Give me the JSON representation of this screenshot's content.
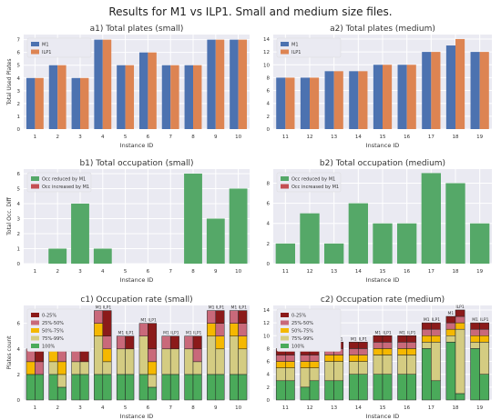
{
  "figure": {
    "title": "Results for M1 vs ILP1. Small and medium size files."
  },
  "colors": {
    "panel_bg": "#eaeaf2",
    "grid": "#ffffff",
    "m1": "#4c72b0",
    "ilp1": "#dd8452",
    "reduced": "#55a868",
    "increased": "#c44e52",
    "rate_0_25": "#8b1a1a",
    "rate_25_50": "#c9697a",
    "rate_50_75": "#f5b800",
    "rate_75_99": "#d4cc82",
    "rate_100": "#4aaa5a"
  },
  "chart_data": [
    {
      "id": "a1",
      "type": "bar",
      "title": "a1) Total plates (small)",
      "xlabel": "Instance ID",
      "ylabel": "Total Used Plates",
      "categories": [
        "1",
        "2",
        "3",
        "4",
        "5",
        "6",
        "7",
        "8",
        "9",
        "10"
      ],
      "series": [
        {
          "name": "M1",
          "values": [
            4,
            5,
            4,
            7,
            5,
            6,
            5,
            5,
            7,
            7
          ]
        },
        {
          "name": "ILP1",
          "values": [
            4,
            5,
            4,
            7,
            5,
            6,
            5,
            5,
            7,
            7
          ]
        }
      ],
      "ylim": [
        0,
        7.4
      ],
      "yticks": [
        0,
        1,
        2,
        3,
        4,
        5,
        6,
        7
      ],
      "legend": "top-left"
    },
    {
      "id": "a2",
      "type": "bar",
      "title": "a2) Total plates (medium)",
      "xlabel": "Instance ID",
      "ylabel": "",
      "categories": [
        "11",
        "12",
        "13",
        "14",
        "15",
        "16",
        "17",
        "18",
        "19"
      ],
      "series": [
        {
          "name": "M1",
          "values": [
            8,
            8,
            9,
            9,
            10,
            10,
            12,
            13,
            12
          ]
        },
        {
          "name": "ILP1",
          "values": [
            8,
            8,
            9,
            9,
            10,
            10,
            12,
            14,
            12
          ]
        }
      ],
      "ylim": [
        0,
        14.7
      ],
      "yticks": [
        0,
        2,
        4,
        6,
        8,
        10,
        12,
        14
      ],
      "legend": "top-left"
    },
    {
      "id": "b1",
      "type": "bar",
      "title": "b1) Total occupation (small)",
      "xlabel": "Instance ID",
      "ylabel": "Total Occ. Diff",
      "categories": [
        "1",
        "2",
        "3",
        "4",
        "5",
        "6",
        "7",
        "8",
        "9",
        "10"
      ],
      "series": [
        {
          "name": "Occ reduced by M1",
          "values": [
            0,
            1,
            4,
            1,
            0,
            0,
            0,
            6,
            3,
            5
          ]
        },
        {
          "name": "Occ increased by M1",
          "values": [
            0,
            0,
            0,
            0,
            0,
            0,
            0,
            0,
            0,
            0
          ]
        }
      ],
      "ylim": [
        0,
        6.3
      ],
      "yticks": [
        0,
        1,
        2,
        3,
        4,
        5,
        6
      ],
      "legend": "top-left"
    },
    {
      "id": "b2",
      "type": "bar",
      "title": "b2) Total occupation (medium)",
      "xlabel": "Instance ID",
      "ylabel": "",
      "categories": [
        "11",
        "12",
        "13",
        "14",
        "15",
        "16",
        "17",
        "18",
        "19"
      ],
      "series": [
        {
          "name": "Occ reduced by M1",
          "values": [
            2,
            5,
            2,
            6,
            4,
            4,
            9,
            8,
            4
          ]
        },
        {
          "name": "Occ increased by M1",
          "values": [
            0,
            0,
            0,
            0,
            0,
            0,
            0,
            0,
            0
          ]
        }
      ],
      "ylim": [
        0,
        9.4
      ],
      "yticks": [
        0,
        2,
        4,
        6,
        8
      ],
      "legend": "top-left"
    },
    {
      "id": "c1",
      "type": "bar",
      "title": "c1) Occupation rate (small)",
      "xlabel": "Instance ID",
      "ylabel": "Plates count",
      "categories": [
        "1",
        "2",
        "3",
        "4",
        "5",
        "6",
        "7",
        "8",
        "9",
        "10"
      ],
      "stack_labels": [
        "0-25%",
        "25%-50%",
        "50%-75%",
        "75%-99%",
        "100%"
      ],
      "bar_labels": [
        "M1",
        "ILP1"
      ],
      "groups": [
        {
          "M1": [
            0,
            1,
            1,
            0,
            2
          ],
          "ILP1": [
            1,
            1,
            0,
            0,
            2
          ]
        },
        {
          "M1": [
            0,
            1,
            1,
            1,
            2
          ],
          "ILP1": [
            1,
            1,
            1,
            1,
            1
          ]
        },
        {
          "M1": [
            0,
            1,
            0,
            1,
            2
          ],
          "ILP1": [
            1,
            0,
            0,
            1,
            2
          ]
        },
        {
          "M1": [
            0,
            1,
            1,
            3,
            2
          ],
          "ILP1": [
            2,
            1,
            1,
            1,
            2
          ]
        },
        {
          "M1": [
            0,
            1,
            0,
            2,
            2
          ],
          "ILP1": [
            1,
            0,
            0,
            2,
            2
          ]
        },
        {
          "M1": [
            0,
            1,
            0,
            3,
            2
          ],
          "ILP1": [
            2,
            1,
            1,
            1,
            1
          ]
        },
        {
          "M1": [
            0,
            1,
            0,
            2,
            2
          ],
          "ILP1": [
            1,
            0,
            0,
            2,
            2
          ]
        },
        {
          "M1": [
            0,
            1,
            0,
            2,
            2
          ],
          "ILP1": [
            1,
            1,
            0,
            1,
            2
          ]
        },
        {
          "M1": [
            0,
            1,
            1,
            3,
            2
          ],
          "ILP1": [
            1,
            1,
            1,
            2,
            2
          ]
        },
        {
          "M1": [
            0,
            1,
            1,
            3,
            2
          ],
          "ILP1": [
            1,
            1,
            1,
            2,
            2
          ]
        }
      ],
      "ylim": [
        0,
        7.4
      ],
      "yticks": [
        0,
        2,
        4,
        6
      ],
      "legend": "top-left"
    },
    {
      "id": "c2",
      "type": "bar",
      "title": "c2) Occupation rate (medium)",
      "xlabel": "Instance ID",
      "ylabel": "",
      "categories": [
        "11",
        "12",
        "13",
        "14",
        "15",
        "16",
        "17",
        "18",
        "19"
      ],
      "stack_labels": [
        "0-25%",
        "25%-50%",
        "50%-75%",
        "75%-99%",
        "100%"
      ],
      "bar_labels": [
        "M1",
        "ILP1"
      ],
      "groups": [
        {
          "M1": [
            1,
            1,
            1,
            2,
            3
          ],
          "ILP1": [
            1,
            1,
            1,
            2,
            3
          ]
        },
        {
          "M1": [
            1,
            1,
            1,
            3,
            2
          ],
          "ILP1": [
            1,
            1,
            1,
            2,
            3
          ]
        },
        {
          "M1": [
            1,
            1,
            1,
            3,
            3
          ],
          "ILP1": [
            1,
            1,
            1,
            3,
            3
          ]
        },
        {
          "M1": [
            1,
            1,
            1,
            2,
            4
          ],
          "ILP1": [
            1,
            1,
            1,
            2,
            4
          ]
        },
        {
          "M1": [
            1,
            1,
            1,
            3,
            4
          ],
          "ILP1": [
            1,
            1,
            1,
            3,
            4
          ]
        },
        {
          "M1": [
            1,
            1,
            1,
            3,
            4
          ],
          "ILP1": [
            1,
            1,
            1,
            3,
            4
          ]
        },
        {
          "M1": [
            1,
            1,
            1,
            1,
            8
          ],
          "ILP1": [
            1,
            1,
            1,
            6,
            3
          ]
        },
        {
          "M1": [
            1,
            1,
            1,
            1,
            9
          ],
          "ILP1": [
            1,
            1,
            1,
            10,
            1
          ]
        },
        {
          "M1": [
            1,
            1,
            1,
            1,
            8
          ],
          "ILP1": [
            1,
            1,
            1,
            5,
            4
          ]
        }
      ],
      "ylim": [
        0,
        14.7
      ],
      "yticks": [
        0,
        2,
        4,
        6,
        8,
        10,
        12,
        14
      ],
      "legend": "top-left"
    }
  ]
}
